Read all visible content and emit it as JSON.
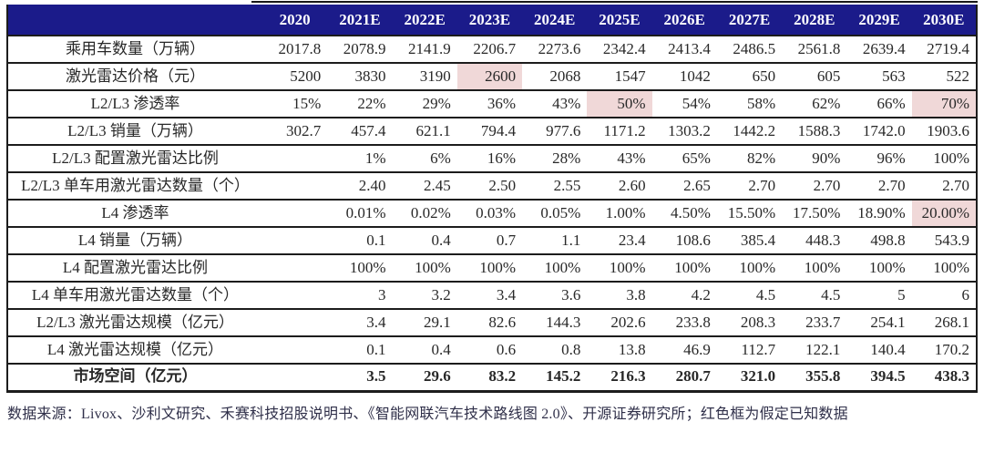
{
  "colors": {
    "header_bg": "#1b1b8a",
    "header_text": "#ffffff",
    "highlight_bg": "#f0d8d8",
    "border": "#1c1c1c",
    "body_text": "#282828",
    "footer_text": "#30304a"
  },
  "table": {
    "header": [
      "",
      "2020",
      "2021E",
      "2022E",
      "2023E",
      "2024E",
      "2025E",
      "2026E",
      "2027E",
      "2028E",
      "2029E",
      "2030E"
    ],
    "rows": [
      {
        "label": "乘用车数量（万辆）",
        "values": [
          "2017.8",
          "2078.9",
          "2141.9",
          "2206.7",
          "2273.6",
          "2342.4",
          "2413.4",
          "2486.5",
          "2561.8",
          "2639.4",
          "2719.4"
        ],
        "highlights": [],
        "bold": false
      },
      {
        "label": "激光雷达价格（元）",
        "values": [
          "5200",
          "3830",
          "3190",
          "2600",
          "2068",
          "1547",
          "1042",
          "650",
          "605",
          "563",
          "522"
        ],
        "highlights": [
          3
        ],
        "bold": false
      },
      {
        "label": "L2/L3 渗透率",
        "values": [
          "15%",
          "22%",
          "29%",
          "36%",
          "43%",
          "50%",
          "54%",
          "58%",
          "62%",
          "66%",
          "70%"
        ],
        "highlights": [
          5,
          10
        ],
        "bold": false
      },
      {
        "label": "L2/L3 销量（万辆）",
        "values": [
          "302.7",
          "457.4",
          "621.1",
          "794.4",
          "977.6",
          "1171.2",
          "1303.2",
          "1442.2",
          "1588.3",
          "1742.0",
          "1903.6"
        ],
        "highlights": [],
        "bold": false
      },
      {
        "label": "L2/L3 配置激光雷达比例",
        "values": [
          "",
          "1%",
          "6%",
          "16%",
          "28%",
          "43%",
          "65%",
          "82%",
          "90%",
          "96%",
          "100%"
        ],
        "highlights": [],
        "bold": false
      },
      {
        "label": "L2/L3 单车用激光雷达数量（个）",
        "values": [
          "",
          "2.40",
          "2.45",
          "2.50",
          "2.55",
          "2.60",
          "2.65",
          "2.70",
          "2.70",
          "2.70",
          "2.70"
        ],
        "highlights": [],
        "bold": false
      },
      {
        "label": "L4 渗透率",
        "values": [
          "",
          "0.01%",
          "0.02%",
          "0.03%",
          "0.05%",
          "1.00%",
          "4.50%",
          "15.50%",
          "17.50%",
          "18.90%",
          "20.00%"
        ],
        "highlights": [
          10
        ],
        "bold": false
      },
      {
        "label": "L4 销量（万辆）",
        "values": [
          "",
          "0.1",
          "0.4",
          "0.7",
          "1.1",
          "23.4",
          "108.6",
          "385.4",
          "448.3",
          "498.8",
          "543.9"
        ],
        "highlights": [],
        "bold": false
      },
      {
        "label": "L4 配置激光雷达比例",
        "values": [
          "",
          "100%",
          "100%",
          "100%",
          "100%",
          "100%",
          "100%",
          "100%",
          "100%",
          "100%",
          "100%"
        ],
        "highlights": [],
        "bold": false
      },
      {
        "label": "L4 单车用激光雷达数量（个）",
        "values": [
          "",
          "3",
          "3.2",
          "3.4",
          "3.6",
          "3.8",
          "4.2",
          "4.5",
          "4.5",
          "5",
          "6"
        ],
        "highlights": [],
        "bold": false
      },
      {
        "label": "L2/L3 激光雷达规模（亿元）",
        "values": [
          "",
          "3.4",
          "29.1",
          "82.6",
          "144.3",
          "202.6",
          "233.8",
          "208.3",
          "233.7",
          "254.1",
          "268.1"
        ],
        "highlights": [],
        "bold": false
      },
      {
        "label": "L4 激光雷达规模（亿元）",
        "values": [
          "",
          "0.1",
          "0.4",
          "0.6",
          "0.8",
          "13.8",
          "46.9",
          "112.7",
          "122.1",
          "140.4",
          "170.2"
        ],
        "highlights": [],
        "bold": false
      },
      {
        "label": "市场空间（亿元）",
        "values": [
          "",
          "3.5",
          "29.6",
          "83.2",
          "145.2",
          "216.3",
          "280.7",
          "321.0",
          "355.8",
          "394.5",
          "438.3"
        ],
        "highlights": [],
        "bold": true
      }
    ]
  },
  "footer": {
    "text": "数据来源：Livox、沙利文研究、禾赛科技招股说明书、《智能网联汽车技术路线图 2.0》、开源证券研究所；红色框为假定已知数据"
  }
}
